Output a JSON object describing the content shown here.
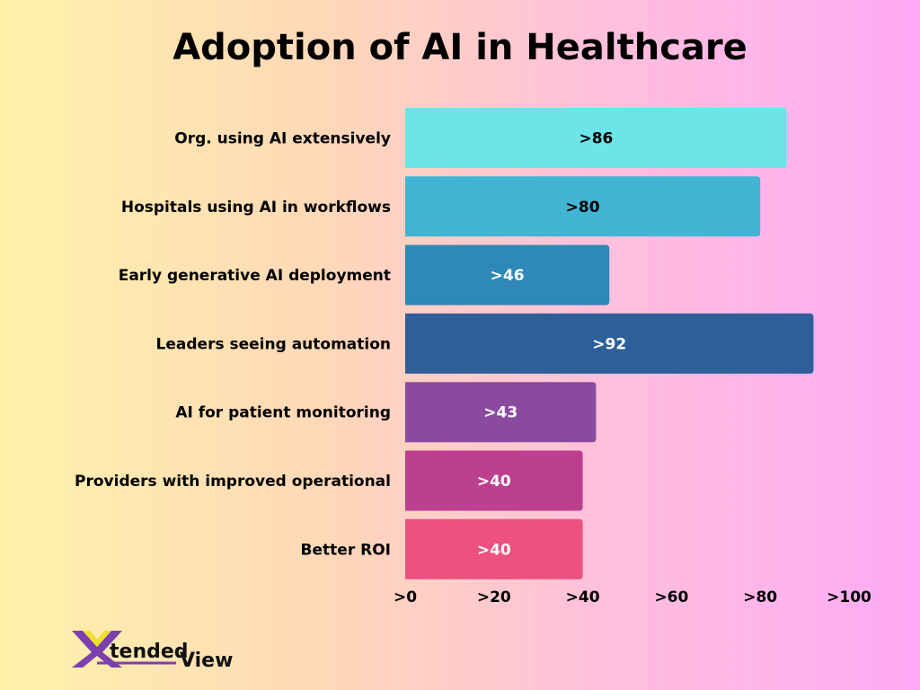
{
  "chart_data": {
    "type": "bar",
    "orientation": "horizontal",
    "title": "Adoption of AI in Healthcare",
    "categories": [
      "Org. using AI extensively",
      "Hospitals using AI in workflows",
      "Early generative AI deployment",
      "Leaders seeing automation",
      "AI for patient monitoring",
      "Providers with improved operational",
      "Better ROI"
    ],
    "values": [
      86,
      80,
      46,
      92,
      43,
      40,
      40
    ],
    "data_labels": [
      ">86",
      ">80",
      ">46",
      ">92",
      ">43",
      ">40",
      ">40"
    ],
    "colors": [
      "#6ce5e8",
      "#42b5d4",
      "#2e89b8",
      "#2e5f99",
      "#8a4a9e",
      "#bd4090",
      "#ed5180"
    ],
    "label_colors": [
      "#000000",
      "#000000",
      "#ffffff",
      "#ffffff",
      "#ffffff",
      "#ffffff",
      "#ffffff"
    ],
    "xlim": [
      0,
      100
    ],
    "xticks": [
      0,
      20,
      40,
      60,
      80,
      100
    ],
    "xtick_labels": [
      ">0",
      ">20",
      ">40",
      ">60",
      ">80",
      ">100"
    ],
    "grid": false
  },
  "logo": {
    "text_part1": "Xtended",
    "text_part2": "View"
  }
}
